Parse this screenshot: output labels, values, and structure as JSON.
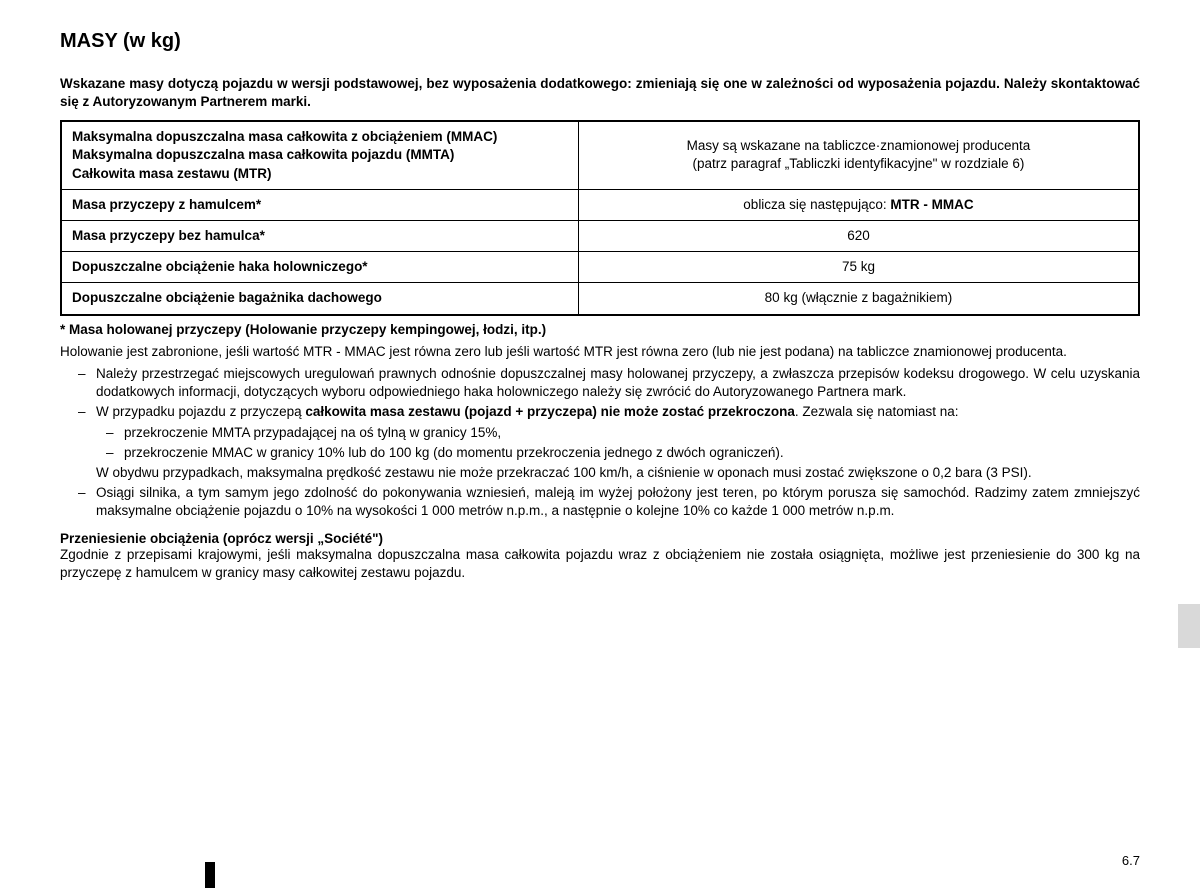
{
  "title": "MASY (w kg)",
  "intro": "Wskazane masy dotyczą pojazdu w wersji podstawowej, bez wyposażenia dodatkowego: zmieniają się one w zależności od wyposażenia pojazdu. Należy skontaktować się z Autoryzowanym Partnerem marki.",
  "table": {
    "border_color": "#000000",
    "rows": [
      {
        "left_html": "Maksymalna dopuszczalna masa całkowita z obciążeniem (MMAC)<br>Maksymalna dopuszczalna masa całkowita pojazdu (MMTA)<br>Całkowita masa zestawu (MTR)",
        "right_html": "Masy są wskazane na tabliczce·znamionowej producenta<br>(patrz paragraf „Tabliczki identyfikacyjne\" w rozdziale 6)",
        "tall": false
      },
      {
        "left_html": "Masa przyczepy z hamulcem*",
        "right_html": "oblicza się następująco: <b>MTR - MMAC</b>",
        "tall": false
      },
      {
        "left_html": "Masa przyczepy bez hamulca*",
        "right_html": "620",
        "tall": false
      },
      {
        "left_html": "Dopuszczalne obciążenie haka holowniczego*",
        "right_html": "75 kg",
        "tall": true
      },
      {
        "left_html": "Dopuszczalne obciążenie bagażnika dachowego",
        "right_html": "80 kg (włącznie z bagażnikiem)",
        "tall": true
      }
    ]
  },
  "footnote_title": "* Masa holowanej przyczepy (Holowanie przyczepy kempingowej, łodzi, itp.)",
  "para1": "Holowanie jest zabronione, jeśli wartość MTR - MMAC jest równa zero lub jeśli wartość MTR jest równa zero (lub nie jest podana) na tabliczce znamionowej producenta.",
  "bullets": [
    {
      "html": "Należy przestrzegać miejscowych uregulowań prawnych odnośnie dopuszczalnej masy holowanej przyczepy, a zwłaszcza przepisów kodeksu drogowego. W celu uzyskania dodatkowych informacji, dotyczących wyboru odpowiedniego haka holowniczego należy się zwrócić do Autoryzowanego Partnera mark."
    },
    {
      "html": "W przypadku pojazdu z przyczepą <b>całkowita masa zestawu (pojazd + przyczepa) nie może zostać przekroczona</b>. Zezwala się natomiast na:",
      "sub": [
        "przekroczenie MMTA przypadającej na oś tylną w granicy 15%,",
        "przekroczenie MMAC w granicy 10% lub do 100 kg (do momentu przekroczenia jednego z dwóch ograniczeń)."
      ],
      "after": "W obydwu przypadkach, maksymalna prędkość zestawu nie może przekraczać 100 km/h, a ciśnienie w oponach musi zostać zwiększone o 0,2 bara (3 PSI)."
    },
    {
      "html": "Osiągi silnika, a tym samym jego zdolność do pokonywania wzniesień, maleją im wyżej położony jest teren, po którym porusza się samochód. Radzimy zatem zmniejszyć maksymalne obciążenie pojazdu o 10% na wysokości 1 000 metrów n.p.m., a następnie o kolejne 10% co każde 1 000 metrów n.p.m."
    }
  ],
  "sub_heading": "Przeniesienie obciążenia (oprócz wersji „Société\")",
  "para2": "Zgodnie z przepisami krajowymi, jeśli maksymalna dopuszczalna masa całkowita pojazdu wraz z obciążeniem nie została osiągnięta, możliwe jest przeniesienie do 300 kg na przyczepę z hamulcem w granicy masy całkowitej zestawu pojazdu.",
  "page_num": "6.7",
  "colors": {
    "background": "#ffffff",
    "text": "#000000",
    "side_tab": "#d9d9d9"
  }
}
